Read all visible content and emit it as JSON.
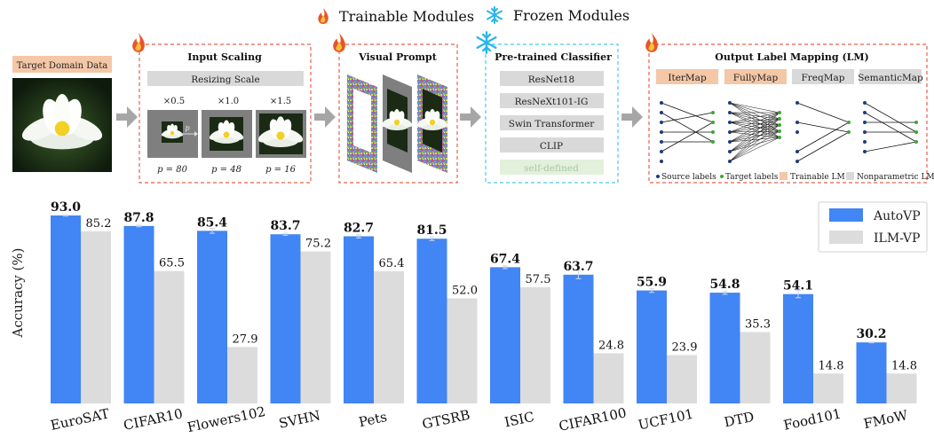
{
  "legend_top": {
    "trainable": "Trainable Modules",
    "frozen": "Frozen Modules"
  },
  "pipeline": {
    "target_domain_label": "Target Domain Data",
    "input_scaling": {
      "title": "Input Scaling",
      "resize_label": "Resizing Scale",
      "scales": [
        "×0.5",
        "×1.0",
        "×1.5"
      ],
      "p_values": [
        "p = 80",
        "p = 48",
        "p = 16"
      ],
      "arrow_p": "p"
    },
    "visual_prompt": {
      "title": "Visual Prompt"
    },
    "classifier": {
      "title": "Pre-trained Classifier",
      "models": [
        "ResNet18",
        "ResNeXt101-IG",
        "Swin Transformer",
        "CLIP",
        "self-defined"
      ]
    },
    "label_mapping": {
      "title": "Output Label Mapping (LM)",
      "methods": [
        "IterMap",
        "FullyMap",
        "FreqMap",
        "SemanticMap"
      ],
      "legend": {
        "source": "Source labels",
        "target": "Target labels",
        "trainable": "Trainable LM",
        "nonparam": "Nonparametric LM"
      }
    }
  },
  "colors": {
    "autovp": "#4285f4",
    "ilmvp": "#dcdcdc",
    "trainable_box": "#f4c7a7",
    "frozen_box": "#d9d9d9",
    "dash_red": "#e8604c",
    "dash_cyan": "#4cc9e8",
    "target_dot": "#3fa535",
    "source_dot": "#1f3b7a"
  },
  "icons": {
    "trainable": "fire-icon",
    "frozen": "snowflake-icon"
  },
  "chart_data": {
    "type": "bar",
    "ylabel": "Accuracy (%)",
    "categories": [
      "EuroSAT",
      "CIFAR10",
      "Flowers102",
      "SVHN",
      "Pets",
      "GTSRB",
      "ISIC",
      "CIFAR100",
      "UCF101",
      "DTD",
      "Food101",
      "FMoW"
    ],
    "series": [
      {
        "name": "AutoVP",
        "values": [
          93.0,
          87.8,
          85.4,
          83.7,
          82.7,
          81.5,
          67.4,
          63.7,
          55.9,
          54.8,
          54.1,
          30.2
        ],
        "labels": [
          "93.0",
          "87.8",
          "85.4",
          "83.7",
          "82.7",
          "81.5",
          "67.4",
          "63.7",
          "55.9",
          "54.8",
          "54.1",
          "30.2"
        ]
      },
      {
        "name": "ILM-VP",
        "values": [
          85.2,
          65.5,
          27.9,
          75.2,
          65.4,
          52.0,
          57.5,
          24.8,
          23.9,
          35.3,
          14.8,
          14.8
        ],
        "labels": [
          "85.2",
          "65.5",
          "27.9",
          "75.2",
          "65.4",
          "52.0",
          "57.5",
          "24.8",
          "23.9",
          "35.3",
          "14.8",
          "14.8"
        ]
      }
    ],
    "error": [
      0.3,
      0.4,
      1.2,
      0.5,
      0.8,
      0.9,
      0.7,
      2.0,
      1.0,
      0.8,
      1.8,
      0.2
    ],
    "ylim": [
      0,
      93
    ],
    "legend": "top-right",
    "grid": false
  }
}
